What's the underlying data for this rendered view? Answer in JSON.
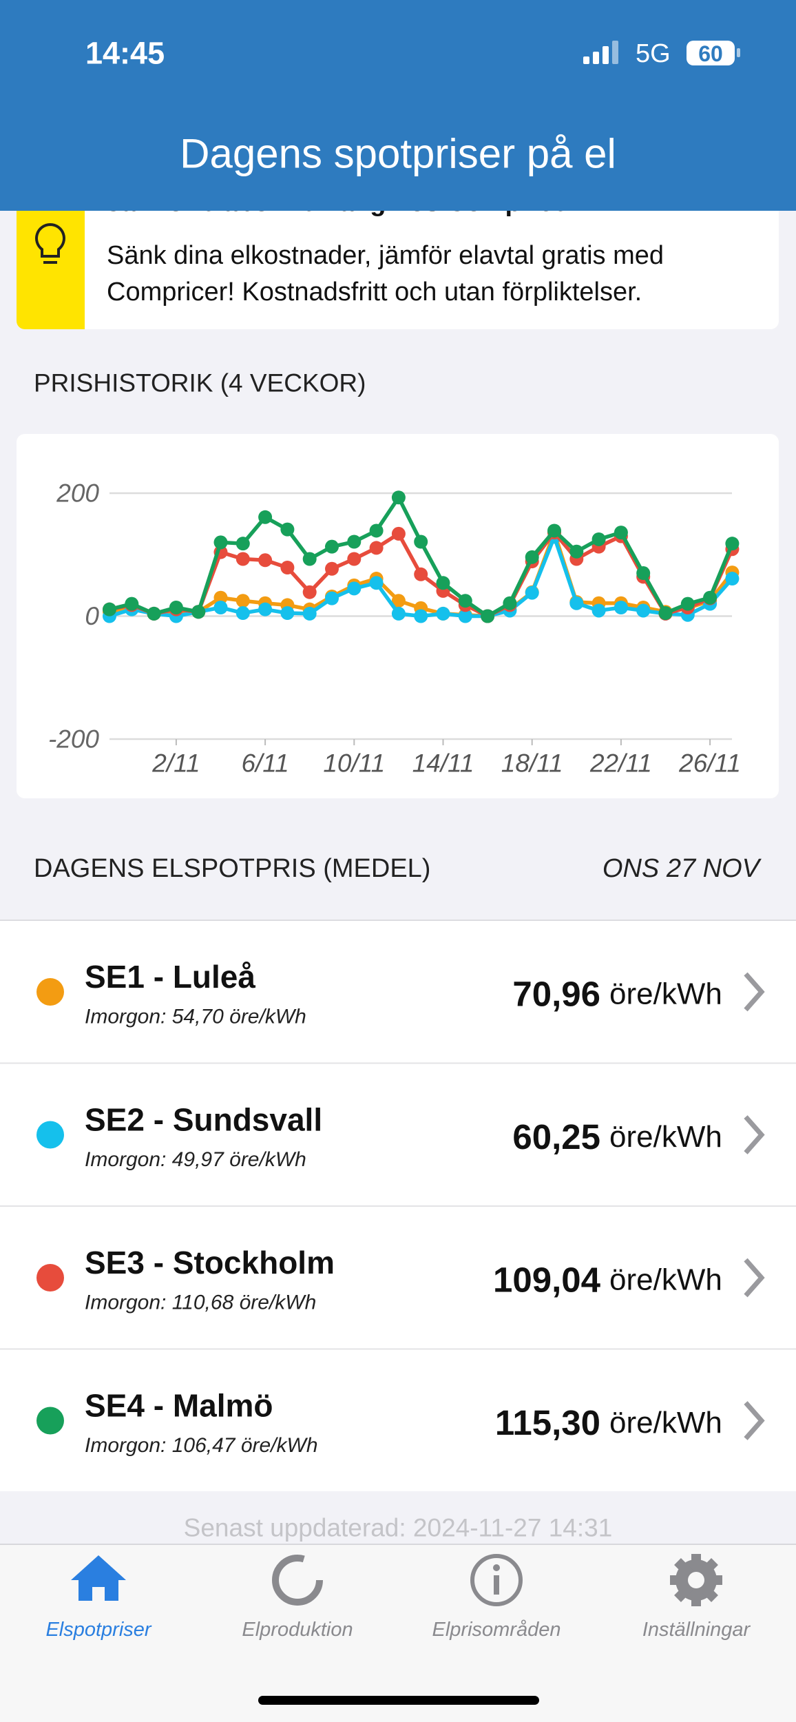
{
  "status_bar": {
    "time": "14:45",
    "network": "5G",
    "battery": "60"
  },
  "header": {
    "title": "Dagens spotpriser på el"
  },
  "banner": {
    "title": "Jämför elabonnemang hos Compricer",
    "lines": [
      "Sänk dina elkostnader, jämför elavtal gratis med",
      "Compricer! Kostnadsfritt och utan förpliktelser."
    ]
  },
  "history": {
    "title": "PRISHISTORIK (4 VECKOR)"
  },
  "chart_data": {
    "type": "line",
    "categories": [
      null,
      null,
      null,
      "2/11",
      null,
      null,
      null,
      "6/11",
      null,
      null,
      null,
      "10/11",
      null,
      null,
      null,
      "14/11",
      null,
      null,
      null,
      "18/11",
      null,
      null,
      null,
      "22/11",
      null,
      null,
      null,
      "26/11",
      null
    ],
    "series": [
      {
        "color": "#f39c12",
        "values": [
          7,
          14,
          4,
          7,
          7,
          30,
          25,
          21,
          18,
          11,
          32,
          50,
          61,
          25,
          13,
          4,
          2,
          0,
          11,
          39,
          136,
          23,
          21,
          21,
          14,
          7,
          13,
          25,
          71
        ]
      },
      {
        "color": "#15c0ec",
        "values": [
          0,
          11,
          4,
          0,
          7,
          14,
          5,
          11,
          5,
          4,
          29,
          45,
          54,
          4,
          0,
          4,
          0,
          0,
          9,
          38,
          129,
          21,
          9,
          14,
          9,
          4,
          2,
          20,
          61
        ]
      },
      {
        "color": "#e74c3c",
        "values": [
          11,
          18,
          4,
          11,
          7,
          104,
          93,
          91,
          79,
          39,
          77,
          93,
          111,
          134,
          68,
          41,
          18,
          0,
          18,
          89,
          136,
          93,
          113,
          130,
          64,
          4,
          14,
          29,
          109
        ]
      },
      {
        "color": "#17a05a",
        "values": [
          11,
          20,
          4,
          14,
          7,
          120,
          118,
          161,
          141,
          93,
          113,
          121,
          139,
          193,
          121,
          54,
          25,
          0,
          21,
          96,
          139,
          105,
          125,
          136,
          70,
          5,
          20,
          30,
          118
        ]
      }
    ],
    "ylim": [
      -200,
      200
    ],
    "yticks": [
      -200,
      0,
      200
    ],
    "grid": true
  },
  "today": {
    "title": "DAGENS ELSPOTPRIS (MEDEL)",
    "date": "ONS 27 NOV",
    "regions": [
      {
        "name": "SE1 - Luleå",
        "tomorrow": "Imorgon: 54,70 öre/kWh",
        "price": "70,96",
        "unit": "öre/kWh"
      },
      {
        "name": "SE2 - Sundsvall",
        "tomorrow": "Imorgon: 49,97 öre/kWh",
        "price": "60,25",
        "unit": "öre/kWh"
      },
      {
        "name": "SE3 - Stockholm",
        "tomorrow": "Imorgon: 110,68 öre/kWh",
        "price": "109,04",
        "unit": "öre/kWh"
      },
      {
        "name": "SE4 - Malmö",
        "tomorrow": "Imorgon: 106,47 öre/kWh",
        "price": "115,30",
        "unit": "öre/kWh"
      }
    ]
  },
  "footer": {
    "updated": "Senast uppdaterad: 2024-11-27 14:31"
  },
  "tabs": [
    "Elspotpriser",
    "Elproduktion",
    "Elprisområden",
    "Inställningar"
  ]
}
